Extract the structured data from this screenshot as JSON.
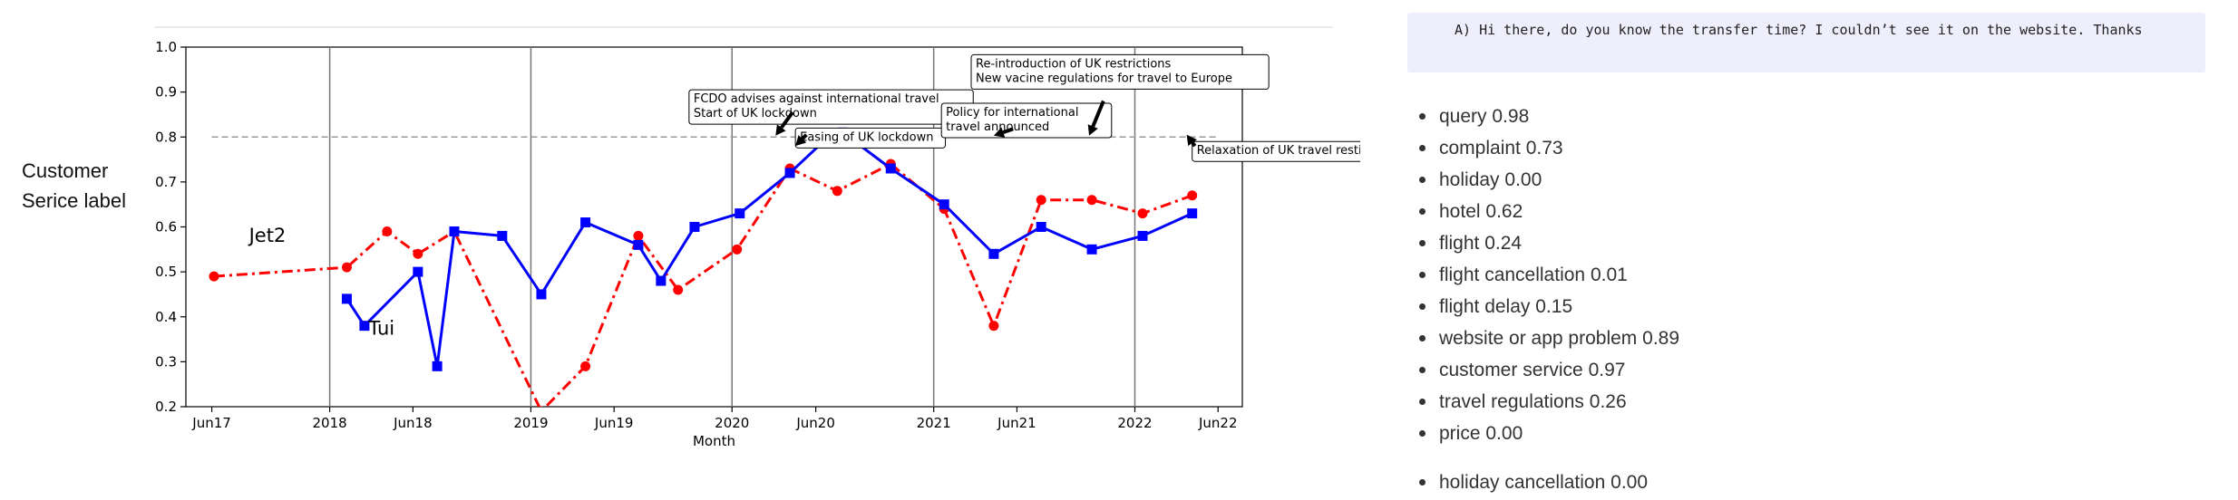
{
  "chart_data": {
    "type": "line",
    "title": "",
    "xlabel": "Month",
    "ylabel": "",
    "ylim": [
      0.2,
      1.0
    ],
    "xlim": [
      "2017-04-15",
      "2022-07-15"
    ],
    "yticks": [
      0.2,
      0.3,
      0.4,
      0.5,
      0.6,
      0.7,
      0.8,
      0.9,
      1.0
    ],
    "yticklabels": [
      "0.2",
      "0.3",
      "0.4",
      "0.5",
      "0.6",
      "0.7",
      "0.8",
      "0.9",
      "1.0"
    ],
    "xticks": [
      {
        "date": "2017-06-01",
        "label": "Jun17"
      },
      {
        "date": "2018-01-01",
        "label": "2018"
      },
      {
        "date": "2018-06-01",
        "label": "Jun18"
      },
      {
        "date": "2019-01-01",
        "label": "2019"
      },
      {
        "date": "2019-06-01",
        "label": "Jun19"
      },
      {
        "date": "2020-01-01",
        "label": "2020"
      },
      {
        "date": "2020-06-01",
        "label": "Jun20"
      },
      {
        "date": "2021-01-01",
        "label": "2021"
      },
      {
        "date": "2021-06-01",
        "label": "Jun21"
      },
      {
        "date": "2022-01-01",
        "label": "2022"
      },
      {
        "date": "2022-06-01",
        "label": "Jun22"
      }
    ],
    "grid": false,
    "vlines": [
      "2018-01-01",
      "2019-01-01",
      "2020-01-01",
      "2021-01-01",
      "2022-01-01"
    ],
    "reference_line": {
      "y": 0.8,
      "from": "2017-06-01",
      "to": "2022-06-01",
      "style": "dashed",
      "color": "#999999"
    },
    "series": [
      {
        "name": "Jet2",
        "color": "#ff0000",
        "marker": "circle",
        "linestyle": "dashdot",
        "label_position": {
          "date": "2017-09-10",
          "value": 0.567
        },
        "points": [
          {
            "date": "2017-06-05",
            "value": 0.49
          },
          {
            "date": "2018-02-01",
            "value": 0.51
          },
          {
            "date": "2018-04-15",
            "value": 0.59
          },
          {
            "date": "2018-06-10",
            "value": 0.54
          },
          {
            "date": "2018-08-15",
            "value": 0.59
          },
          {
            "date": "2019-01-20",
            "value": 0.19
          },
          {
            "date": "2019-04-10",
            "value": 0.29
          },
          {
            "date": "2019-07-15",
            "value": 0.58
          },
          {
            "date": "2019-09-25",
            "value": 0.46
          },
          {
            "date": "2020-01-10",
            "value": 0.55
          },
          {
            "date": "2020-04-15",
            "value": 0.73
          },
          {
            "date": "2020-07-10",
            "value": 0.68
          },
          {
            "date": "2020-10-15",
            "value": 0.74
          },
          {
            "date": "2021-01-20",
            "value": 0.64
          },
          {
            "date": "2021-04-20",
            "value": 0.38
          },
          {
            "date": "2021-07-15",
            "value": 0.66
          },
          {
            "date": "2021-10-15",
            "value": 0.66
          },
          {
            "date": "2022-01-15",
            "value": 0.63
          },
          {
            "date": "2022-04-15",
            "value": 0.67
          }
        ]
      },
      {
        "name": "Tui",
        "color": "#0000ff",
        "marker": "square",
        "linestyle": "solid",
        "label_position": {
          "date": "2018-04-05",
          "value": 0.36
        },
        "points": [
          {
            "date": "2018-02-01",
            "value": 0.44
          },
          {
            "date": "2018-03-05",
            "value": 0.38
          },
          {
            "date": "2018-06-10",
            "value": 0.5
          },
          {
            "date": "2018-07-15",
            "value": 0.29
          },
          {
            "date": "2018-08-15",
            "value": 0.59
          },
          {
            "date": "2018-11-10",
            "value": 0.58
          },
          {
            "date": "2019-01-20",
            "value": 0.45
          },
          {
            "date": "2019-04-10",
            "value": 0.61
          },
          {
            "date": "2019-07-15",
            "value": 0.56
          },
          {
            "date": "2019-08-25",
            "value": 0.48
          },
          {
            "date": "2019-10-25",
            "value": 0.6
          },
          {
            "date": "2020-01-15",
            "value": 0.63
          },
          {
            "date": "2020-04-15",
            "value": 0.72
          },
          {
            "date": "2020-06-15",
            "value": 0.79
          },
          {
            "date": "2020-07-20",
            "value": 0.81
          },
          {
            "date": "2020-10-15",
            "value": 0.73
          },
          {
            "date": "2021-01-20",
            "value": 0.65
          },
          {
            "date": "2021-04-20",
            "value": 0.54
          },
          {
            "date": "2021-07-15",
            "value": 0.6
          },
          {
            "date": "2021-10-15",
            "value": 0.55
          },
          {
            "date": "2022-01-15",
            "value": 0.58
          },
          {
            "date": "2022-04-15",
            "value": 0.63
          }
        ]
      }
    ],
    "annotations": [
      {
        "lines": [
          "FCDO advises against international travel",
          "Start of UK lockdown"
        ],
        "box": {
          "date": "2019-10-15",
          "value": 0.905
        },
        "arrow_from": {
          "date": "2020-04-20",
          "value": 0.855
        },
        "arrow_to": {
          "date": "2020-03-20",
          "value": 0.803
        }
      },
      {
        "lines": [
          "Easing of UK lockdown"
        ],
        "box": {
          "date": "2020-04-25",
          "value": 0.82
        },
        "arrow_from": {
          "date": "2020-05-15",
          "value": 0.805
        },
        "arrow_to": {
          "date": "2020-04-25",
          "value": 0.78
        }
      },
      {
        "lines": [
          "Policy for international",
          "travel announced"
        ],
        "box": {
          "date": "2021-01-15",
          "value": 0.875
        },
        "arrow_from": {
          "date": "2021-05-25",
          "value": 0.818
        },
        "arrow_to": {
          "date": "2021-04-20",
          "value": 0.803
        }
      },
      {
        "lines": [
          "Re-introduction of UK restrictions",
          "New vacine regulations for travel to Europe"
        ],
        "box": {
          "date": "2021-03-10",
          "value": 0.983
        },
        "arrow_from": {
          "date": "2021-11-05",
          "value": 0.88
        },
        "arrow_to": {
          "date": "2021-10-10",
          "value": 0.803
        }
      },
      {
        "lines": [
          "Relaxation of UK travel restictions"
        ],
        "box": {
          "date": "2022-04-15",
          "value": 0.79
        },
        "arrow_from": {
          "date": "2022-04-20",
          "value": 0.78
        },
        "arrow_to": {
          "date": "2022-04-05",
          "value": 0.805
        }
      }
    ]
  },
  "side_label": {
    "line1": "Customer",
    "line2": "Serice label"
  },
  "chat": {
    "message": "A) Hi there, do you know the transfer time? I couldn’t see it on the website. Thanks"
  },
  "labels": [
    {
      "name": "query",
      "score": "0.98"
    },
    {
      "name": "complaint",
      "score": "0.73"
    },
    {
      "name": "holiday",
      "score": "0.00"
    },
    {
      "name": "hotel",
      "score": "0.62"
    },
    {
      "name": "flight",
      "score": "0.24"
    },
    {
      "name": "flight cancellation",
      "score": "0.01"
    },
    {
      "name": "flight delay",
      "score": "0.15"
    },
    {
      "name": "website or app problem",
      "score": "0.89"
    },
    {
      "name": "customer service",
      "score": "0.97"
    },
    {
      "name": "travel regulations",
      "score": "0.26"
    },
    {
      "name": "price",
      "score": "0.00"
    },
    {
      "name": "holiday cancellation",
      "score": "0.00"
    }
  ]
}
